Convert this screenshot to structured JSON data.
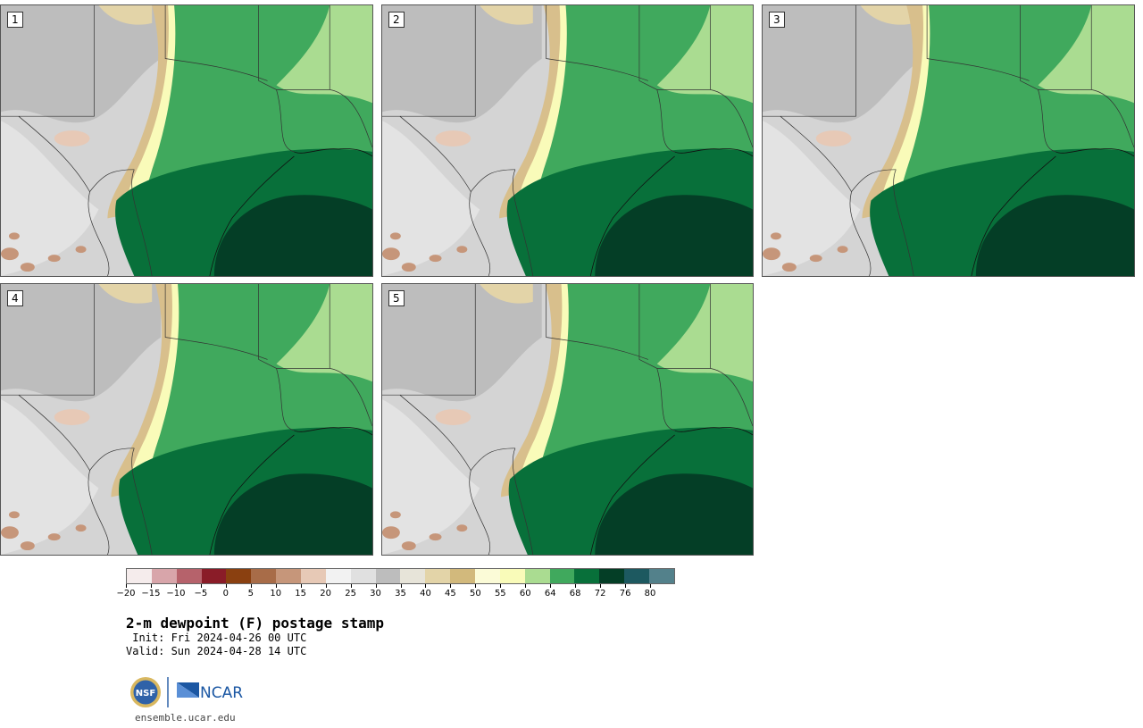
{
  "panels": [
    {
      "label": "1"
    },
    {
      "label": "2"
    },
    {
      "label": "3"
    },
    {
      "label": "4"
    },
    {
      "label": "5"
    }
  ],
  "colorbar": {
    "colors": [
      "#f5ecec",
      "#d8a5aa",
      "#b6626b",
      "#8a1c28",
      "#8a4010",
      "#a86c48",
      "#c6967a",
      "#e7c9b6",
      "#f2f2f2",
      "#e0e0e0",
      "#bdbdbd",
      "#e7e4d9",
      "#e3d4a8",
      "#d2b97c",
      "#fbfbd7",
      "#f9fbb9",
      "#aadc91",
      "#40a95d",
      "#08703a",
      "#043e26",
      "#1d5960",
      "#53818b"
    ],
    "tick_labels": [
      "−20",
      "−15",
      "−10",
      "−5",
      "0",
      "5",
      "10",
      "15",
      "20",
      "25",
      "30",
      "35",
      "40",
      "45",
      "50",
      "55",
      "60",
      "64",
      "68",
      "72",
      "76",
      "80"
    ]
  },
  "title": "2-m dewpoint (F) postage stamp",
  "init": " Init: Fri 2024-04-26 00 UTC",
  "valid": "Valid: Sun 2024-04-28 14 UTC",
  "logos": {
    "nsf": "NSF",
    "ncar": "NCAR"
  },
  "site": "ensemble.ucar.edu"
}
